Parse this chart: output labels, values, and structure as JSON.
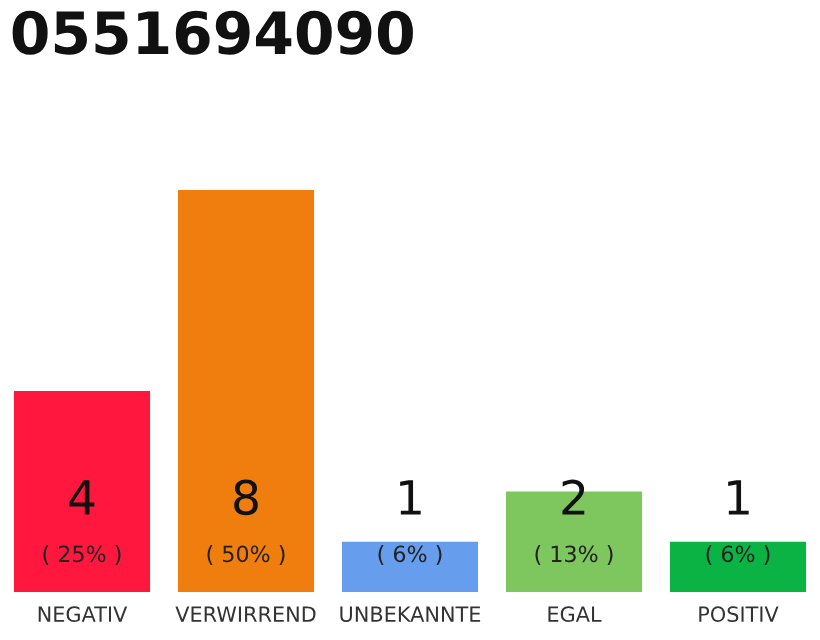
{
  "chart_data": {
    "type": "bar",
    "title": "0551694090",
    "categories": [
      "NEGATIV",
      "VERWIRREND",
      "UNBEKANNTE",
      "EGAL",
      "POSITIV"
    ],
    "values": [
      4,
      8,
      1,
      2,
      1
    ],
    "colors": [
      "#ff173d",
      "#f07e0e",
      "#669ded",
      "#7ec75e",
      "#0bb344"
    ],
    "value_labels": [
      "4\n( 25% )",
      "8\n( 50% )",
      "1\n( 6% )",
      "2\n( 13% )",
      "1\n( 6% )"
    ],
    "ylim": [
      0,
      8
    ],
    "grid": false,
    "legend": false,
    "tick_labels": "x"
  }
}
